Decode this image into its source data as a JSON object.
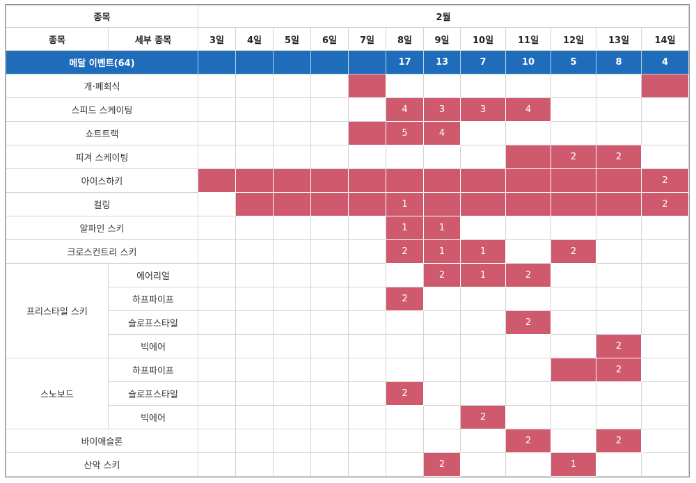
{
  "header": {
    "event_label": "종목",
    "month": "2월",
    "col_event": "종목",
    "col_detail": "세부 종목",
    "dates": [
      "3일",
      "4일",
      "5일",
      "6일",
      "7일",
      "8일",
      "9일",
      "10일",
      "11일",
      "12일",
      "13일",
      "14일"
    ]
  },
  "medal_row": {
    "label": "메달 이벤트(64)",
    "values": [
      "",
      "",
      "",
      "",
      "",
      "17",
      "13",
      "7",
      "10",
      "5",
      "8",
      "4"
    ]
  },
  "rows": [
    {
      "event": "개·폐회식",
      "detail": "",
      "cells": [
        {
          "on": false,
          "v": ""
        },
        {
          "on": false,
          "v": ""
        },
        {
          "on": false,
          "v": ""
        },
        {
          "on": false,
          "v": ""
        },
        {
          "on": true,
          "v": ""
        },
        {
          "on": false,
          "v": ""
        },
        {
          "on": false,
          "v": ""
        },
        {
          "on": false,
          "v": ""
        },
        {
          "on": false,
          "v": ""
        },
        {
          "on": false,
          "v": ""
        },
        {
          "on": false,
          "v": ""
        },
        {
          "on": true,
          "v": ""
        }
      ]
    },
    {
      "event": "스피드 스케이팅",
      "detail": "",
      "cells": [
        {
          "on": false,
          "v": ""
        },
        {
          "on": false,
          "v": ""
        },
        {
          "on": false,
          "v": ""
        },
        {
          "on": false,
          "v": ""
        },
        {
          "on": false,
          "v": ""
        },
        {
          "on": true,
          "v": "4"
        },
        {
          "on": true,
          "v": "3"
        },
        {
          "on": true,
          "v": "3"
        },
        {
          "on": true,
          "v": "4"
        },
        {
          "on": false,
          "v": ""
        },
        {
          "on": false,
          "v": ""
        },
        {
          "on": false,
          "v": ""
        }
      ]
    },
    {
      "event": "쇼트트랙",
      "detail": "",
      "cells": [
        {
          "on": false,
          "v": ""
        },
        {
          "on": false,
          "v": ""
        },
        {
          "on": false,
          "v": ""
        },
        {
          "on": false,
          "v": ""
        },
        {
          "on": true,
          "v": ""
        },
        {
          "on": true,
          "v": "5"
        },
        {
          "on": true,
          "v": "4"
        },
        {
          "on": false,
          "v": ""
        },
        {
          "on": false,
          "v": ""
        },
        {
          "on": false,
          "v": ""
        },
        {
          "on": false,
          "v": ""
        },
        {
          "on": false,
          "v": ""
        }
      ]
    },
    {
      "event": "피겨 스케이팅",
      "detail": "",
      "cells": [
        {
          "on": false,
          "v": ""
        },
        {
          "on": false,
          "v": ""
        },
        {
          "on": false,
          "v": ""
        },
        {
          "on": false,
          "v": ""
        },
        {
          "on": false,
          "v": ""
        },
        {
          "on": false,
          "v": ""
        },
        {
          "on": false,
          "v": ""
        },
        {
          "on": false,
          "v": ""
        },
        {
          "on": true,
          "v": ""
        },
        {
          "on": true,
          "v": "2"
        },
        {
          "on": true,
          "v": "2"
        },
        {
          "on": false,
          "v": ""
        }
      ]
    },
    {
      "event": "아이스하키",
      "detail": "",
      "cells": [
        {
          "on": true,
          "v": ""
        },
        {
          "on": true,
          "v": ""
        },
        {
          "on": true,
          "v": ""
        },
        {
          "on": true,
          "v": ""
        },
        {
          "on": true,
          "v": ""
        },
        {
          "on": true,
          "v": ""
        },
        {
          "on": true,
          "v": ""
        },
        {
          "on": true,
          "v": ""
        },
        {
          "on": true,
          "v": ""
        },
        {
          "on": true,
          "v": ""
        },
        {
          "on": true,
          "v": ""
        },
        {
          "on": true,
          "v": "2"
        }
      ]
    },
    {
      "event": "컬링",
      "detail": "",
      "cells": [
        {
          "on": false,
          "v": ""
        },
        {
          "on": true,
          "v": ""
        },
        {
          "on": true,
          "v": ""
        },
        {
          "on": true,
          "v": ""
        },
        {
          "on": true,
          "v": ""
        },
        {
          "on": true,
          "v": "1"
        },
        {
          "on": true,
          "v": ""
        },
        {
          "on": true,
          "v": ""
        },
        {
          "on": true,
          "v": ""
        },
        {
          "on": true,
          "v": ""
        },
        {
          "on": true,
          "v": ""
        },
        {
          "on": true,
          "v": "2"
        }
      ]
    },
    {
      "event": "알파인 스키",
      "detail": "",
      "cells": [
        {
          "on": false,
          "v": ""
        },
        {
          "on": false,
          "v": ""
        },
        {
          "on": false,
          "v": ""
        },
        {
          "on": false,
          "v": ""
        },
        {
          "on": false,
          "v": ""
        },
        {
          "on": true,
          "v": "1"
        },
        {
          "on": true,
          "v": "1"
        },
        {
          "on": false,
          "v": ""
        },
        {
          "on": false,
          "v": ""
        },
        {
          "on": false,
          "v": ""
        },
        {
          "on": false,
          "v": ""
        },
        {
          "on": false,
          "v": ""
        }
      ]
    },
    {
      "event": "크로스컨트리 스키",
      "detail": "",
      "cells": [
        {
          "on": false,
          "v": ""
        },
        {
          "on": false,
          "v": ""
        },
        {
          "on": false,
          "v": ""
        },
        {
          "on": false,
          "v": ""
        },
        {
          "on": false,
          "v": ""
        },
        {
          "on": true,
          "v": "2"
        },
        {
          "on": true,
          "v": "1"
        },
        {
          "on": true,
          "v": "1"
        },
        {
          "on": false,
          "v": ""
        },
        {
          "on": true,
          "v": "2"
        },
        {
          "on": false,
          "v": ""
        },
        {
          "on": false,
          "v": ""
        }
      ]
    },
    {
      "event": "프리스타일 스키",
      "detail": "에어리얼",
      "cells": [
        {
          "on": false,
          "v": ""
        },
        {
          "on": false,
          "v": ""
        },
        {
          "on": false,
          "v": ""
        },
        {
          "on": false,
          "v": ""
        },
        {
          "on": false,
          "v": ""
        },
        {
          "on": false,
          "v": ""
        },
        {
          "on": true,
          "v": "2"
        },
        {
          "on": true,
          "v": "1"
        },
        {
          "on": true,
          "v": "2"
        },
        {
          "on": false,
          "v": ""
        },
        {
          "on": false,
          "v": ""
        },
        {
          "on": false,
          "v": ""
        }
      ]
    },
    {
      "event": "",
      "detail": "하프파이프",
      "cells": [
        {
          "on": false,
          "v": ""
        },
        {
          "on": false,
          "v": ""
        },
        {
          "on": false,
          "v": ""
        },
        {
          "on": false,
          "v": ""
        },
        {
          "on": false,
          "v": ""
        },
        {
          "on": true,
          "v": "2"
        },
        {
          "on": false,
          "v": ""
        },
        {
          "on": false,
          "v": ""
        },
        {
          "on": false,
          "v": ""
        },
        {
          "on": false,
          "v": ""
        },
        {
          "on": false,
          "v": ""
        },
        {
          "on": false,
          "v": ""
        }
      ]
    },
    {
      "event": "",
      "detail": "슬로프스타일",
      "cells": [
        {
          "on": false,
          "v": ""
        },
        {
          "on": false,
          "v": ""
        },
        {
          "on": false,
          "v": ""
        },
        {
          "on": false,
          "v": ""
        },
        {
          "on": false,
          "v": ""
        },
        {
          "on": false,
          "v": ""
        },
        {
          "on": false,
          "v": ""
        },
        {
          "on": false,
          "v": ""
        },
        {
          "on": true,
          "v": "2"
        },
        {
          "on": false,
          "v": ""
        },
        {
          "on": false,
          "v": ""
        },
        {
          "on": false,
          "v": ""
        }
      ]
    },
    {
      "event": "",
      "detail": "빅에어",
      "cells": [
        {
          "on": false,
          "v": ""
        },
        {
          "on": false,
          "v": ""
        },
        {
          "on": false,
          "v": ""
        },
        {
          "on": false,
          "v": ""
        },
        {
          "on": false,
          "v": ""
        },
        {
          "on": false,
          "v": ""
        },
        {
          "on": false,
          "v": ""
        },
        {
          "on": false,
          "v": ""
        },
        {
          "on": false,
          "v": ""
        },
        {
          "on": false,
          "v": ""
        },
        {
          "on": true,
          "v": "2"
        },
        {
          "on": false,
          "v": ""
        }
      ]
    },
    {
      "event": "스노보드",
      "detail": "하프파이프",
      "cells": [
        {
          "on": false,
          "v": ""
        },
        {
          "on": false,
          "v": ""
        },
        {
          "on": false,
          "v": ""
        },
        {
          "on": false,
          "v": ""
        },
        {
          "on": false,
          "v": ""
        },
        {
          "on": false,
          "v": ""
        },
        {
          "on": false,
          "v": ""
        },
        {
          "on": false,
          "v": ""
        },
        {
          "on": false,
          "v": ""
        },
        {
          "on": true,
          "v": ""
        },
        {
          "on": true,
          "v": "2"
        },
        {
          "on": false,
          "v": ""
        }
      ]
    },
    {
      "event": "",
      "detail": "슬로프스타일",
      "cells": [
        {
          "on": false,
          "v": ""
        },
        {
          "on": false,
          "v": ""
        },
        {
          "on": false,
          "v": ""
        },
        {
          "on": false,
          "v": ""
        },
        {
          "on": false,
          "v": ""
        },
        {
          "on": true,
          "v": "2"
        },
        {
          "on": false,
          "v": ""
        },
        {
          "on": false,
          "v": ""
        },
        {
          "on": false,
          "v": ""
        },
        {
          "on": false,
          "v": ""
        },
        {
          "on": false,
          "v": ""
        },
        {
          "on": false,
          "v": ""
        }
      ]
    },
    {
      "event": "",
      "detail": "빅에어",
      "cells": [
        {
          "on": false,
          "v": ""
        },
        {
          "on": false,
          "v": ""
        },
        {
          "on": false,
          "v": ""
        },
        {
          "on": false,
          "v": ""
        },
        {
          "on": false,
          "v": ""
        },
        {
          "on": false,
          "v": ""
        },
        {
          "on": false,
          "v": ""
        },
        {
          "on": true,
          "v": "2"
        },
        {
          "on": false,
          "v": ""
        },
        {
          "on": false,
          "v": ""
        },
        {
          "on": false,
          "v": ""
        },
        {
          "on": false,
          "v": ""
        }
      ]
    },
    {
      "event": "바이애슬론",
      "detail": "",
      "cells": [
        {
          "on": false,
          "v": ""
        },
        {
          "on": false,
          "v": ""
        },
        {
          "on": false,
          "v": ""
        },
        {
          "on": false,
          "v": ""
        },
        {
          "on": false,
          "v": ""
        },
        {
          "on": false,
          "v": ""
        },
        {
          "on": false,
          "v": ""
        },
        {
          "on": false,
          "v": ""
        },
        {
          "on": true,
          "v": "2"
        },
        {
          "on": false,
          "v": ""
        },
        {
          "on": true,
          "v": "2"
        },
        {
          "on": false,
          "v": ""
        }
      ]
    },
    {
      "event": "산악 스키",
      "detail": "",
      "cells": [
        {
          "on": false,
          "v": ""
        },
        {
          "on": false,
          "v": ""
        },
        {
          "on": false,
          "v": ""
        },
        {
          "on": false,
          "v": ""
        },
        {
          "on": false,
          "v": ""
        },
        {
          "on": false,
          "v": ""
        },
        {
          "on": true,
          "v": "2"
        },
        {
          "on": false,
          "v": ""
        },
        {
          "on": false,
          "v": ""
        },
        {
          "on": true,
          "v": "1"
        },
        {
          "on": false,
          "v": ""
        },
        {
          "on": false,
          "v": ""
        }
      ]
    }
  ],
  "colors": {
    "highlight": "#cf5a6d",
    "medal_row_bg": "#1f6cbb",
    "grid": "#d3d3d3"
  }
}
